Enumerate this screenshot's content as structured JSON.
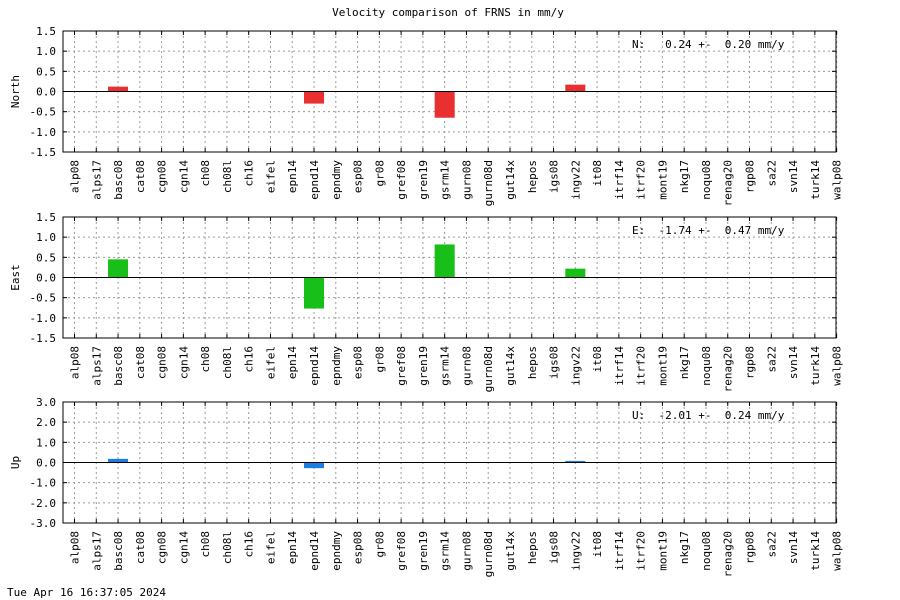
{
  "title": "Velocity comparison of FRNS in mm/y",
  "footer": "Tue Apr 16 16:37:05 2024",
  "colors": {
    "north": "#e83030",
    "east": "#18bf18",
    "up": "#1a7fe0",
    "grid": "#9a9a9a",
    "axis": "#000000"
  },
  "chart_data": [
    {
      "type": "bar",
      "ylabel": "North",
      "annotation": "N:   0.24 +-  0.20 mm/y",
      "ylim": [
        -1.5,
        1.5
      ],
      "yticks": [
        1.5,
        1.0,
        0.5,
        0.0,
        -0.5,
        -1.0,
        -1.5
      ],
      "ytick_labels": [
        "1.5",
        "1.0",
        "0.5",
        "0.0",
        "-0.5",
        "-1.0",
        "-1.5"
      ],
      "grid": true,
      "categories": [
        "alp08",
        "alps17",
        "basc08",
        "cat08",
        "cgn08",
        "cgn14",
        "ch08",
        "ch08l",
        "ch16",
        "eifel",
        "epn14",
        "epnd14",
        "epndmy",
        "esp08",
        "gr08",
        "gref08",
        "gren19",
        "gsrm14",
        "gurn08",
        "gurn08d",
        "gut14x",
        "hepos",
        "igs08",
        "ingv22",
        "it08",
        "itrf14",
        "itrf20",
        "mont19",
        "nkg17",
        "noqu08",
        "renag20",
        "rgp08",
        "sa22",
        "svn14",
        "turk14",
        "walp08"
      ],
      "values": [
        0,
        0,
        0.12,
        0,
        0,
        0,
        0,
        0,
        0,
        0,
        0,
        -0.3,
        0,
        0,
        0,
        0,
        0,
        -0.65,
        0,
        0,
        0,
        0,
        0,
        0.17,
        0,
        0,
        0,
        0,
        0,
        0,
        0,
        0,
        0,
        0,
        0,
        0
      ],
      "color": "#e83030"
    },
    {
      "type": "bar",
      "ylabel": "East",
      "annotation": "E:  -1.74 +-  0.47 mm/y",
      "ylim": [
        -1.5,
        1.5
      ],
      "yticks": [
        1.5,
        1.0,
        0.5,
        0.0,
        -0.5,
        -1.0,
        -1.5
      ],
      "ytick_labels": [
        "1.5",
        "1.0",
        "0.5",
        "0.0",
        "-0.5",
        "-1.0",
        "-1.5"
      ],
      "grid": true,
      "categories": [
        "alp08",
        "alps17",
        "basc08",
        "cat08",
        "cgn08",
        "cgn14",
        "ch08",
        "ch08l",
        "ch16",
        "eifel",
        "epn14",
        "epnd14",
        "epndmy",
        "esp08",
        "gr08",
        "gref08",
        "gren19",
        "gsrm14",
        "gurn08",
        "gurn08d",
        "gut14x",
        "hepos",
        "igs08",
        "ingv22",
        "it08",
        "itrf14",
        "itrf20",
        "mont19",
        "nkg17",
        "noqu08",
        "renag20",
        "rgp08",
        "sa22",
        "svn14",
        "turk14",
        "walp08"
      ],
      "values": [
        0,
        0,
        0.45,
        0,
        0,
        0,
        0,
        0,
        0,
        0,
        0,
        -0.77,
        0,
        0,
        0,
        0,
        0,
        0.82,
        0,
        0,
        0,
        0,
        0,
        0.22,
        0,
        0,
        0,
        0,
        0,
        0,
        0,
        0,
        0,
        0,
        0,
        0
      ],
      "color": "#18bf18"
    },
    {
      "type": "bar",
      "ylabel": "Up",
      "annotation": "U:  -2.01 +-  0.24 mm/y",
      "ylim": [
        -3.0,
        3.0
      ],
      "yticks": [
        3.0,
        2.0,
        1.0,
        0.0,
        -1.0,
        -2.0,
        -3.0
      ],
      "ytick_labels": [
        "3.0",
        "2.0",
        "1.0",
        "0.0",
        "-1.0",
        "-2.0",
        "-3.0"
      ],
      "grid": true,
      "categories": [
        "alp08",
        "alps17",
        "basc08",
        "cat08",
        "cgn08",
        "cgn14",
        "ch08",
        "ch08l",
        "ch16",
        "eifel",
        "epn14",
        "epnd14",
        "epndmy",
        "esp08",
        "gr08",
        "gref08",
        "gren19",
        "gsrm14",
        "gurn08",
        "gurn08d",
        "gut14x",
        "hepos",
        "igs08",
        "ingv22",
        "it08",
        "itrf14",
        "itrf20",
        "mont19",
        "nkg17",
        "noqu08",
        "renag20",
        "rgp08",
        "sa22",
        "svn14",
        "turk14",
        "walp08"
      ],
      "values": [
        0,
        0,
        0.18,
        0,
        0,
        0,
        0,
        0,
        0,
        0,
        0,
        -0.28,
        0,
        0,
        0,
        0,
        0,
        0,
        0,
        0,
        0,
        0,
        0,
        0.08,
        0,
        0,
        0,
        0,
        0,
        0,
        0,
        0,
        0,
        0,
        0,
        0
      ],
      "color": "#1a7fe0"
    }
  ]
}
